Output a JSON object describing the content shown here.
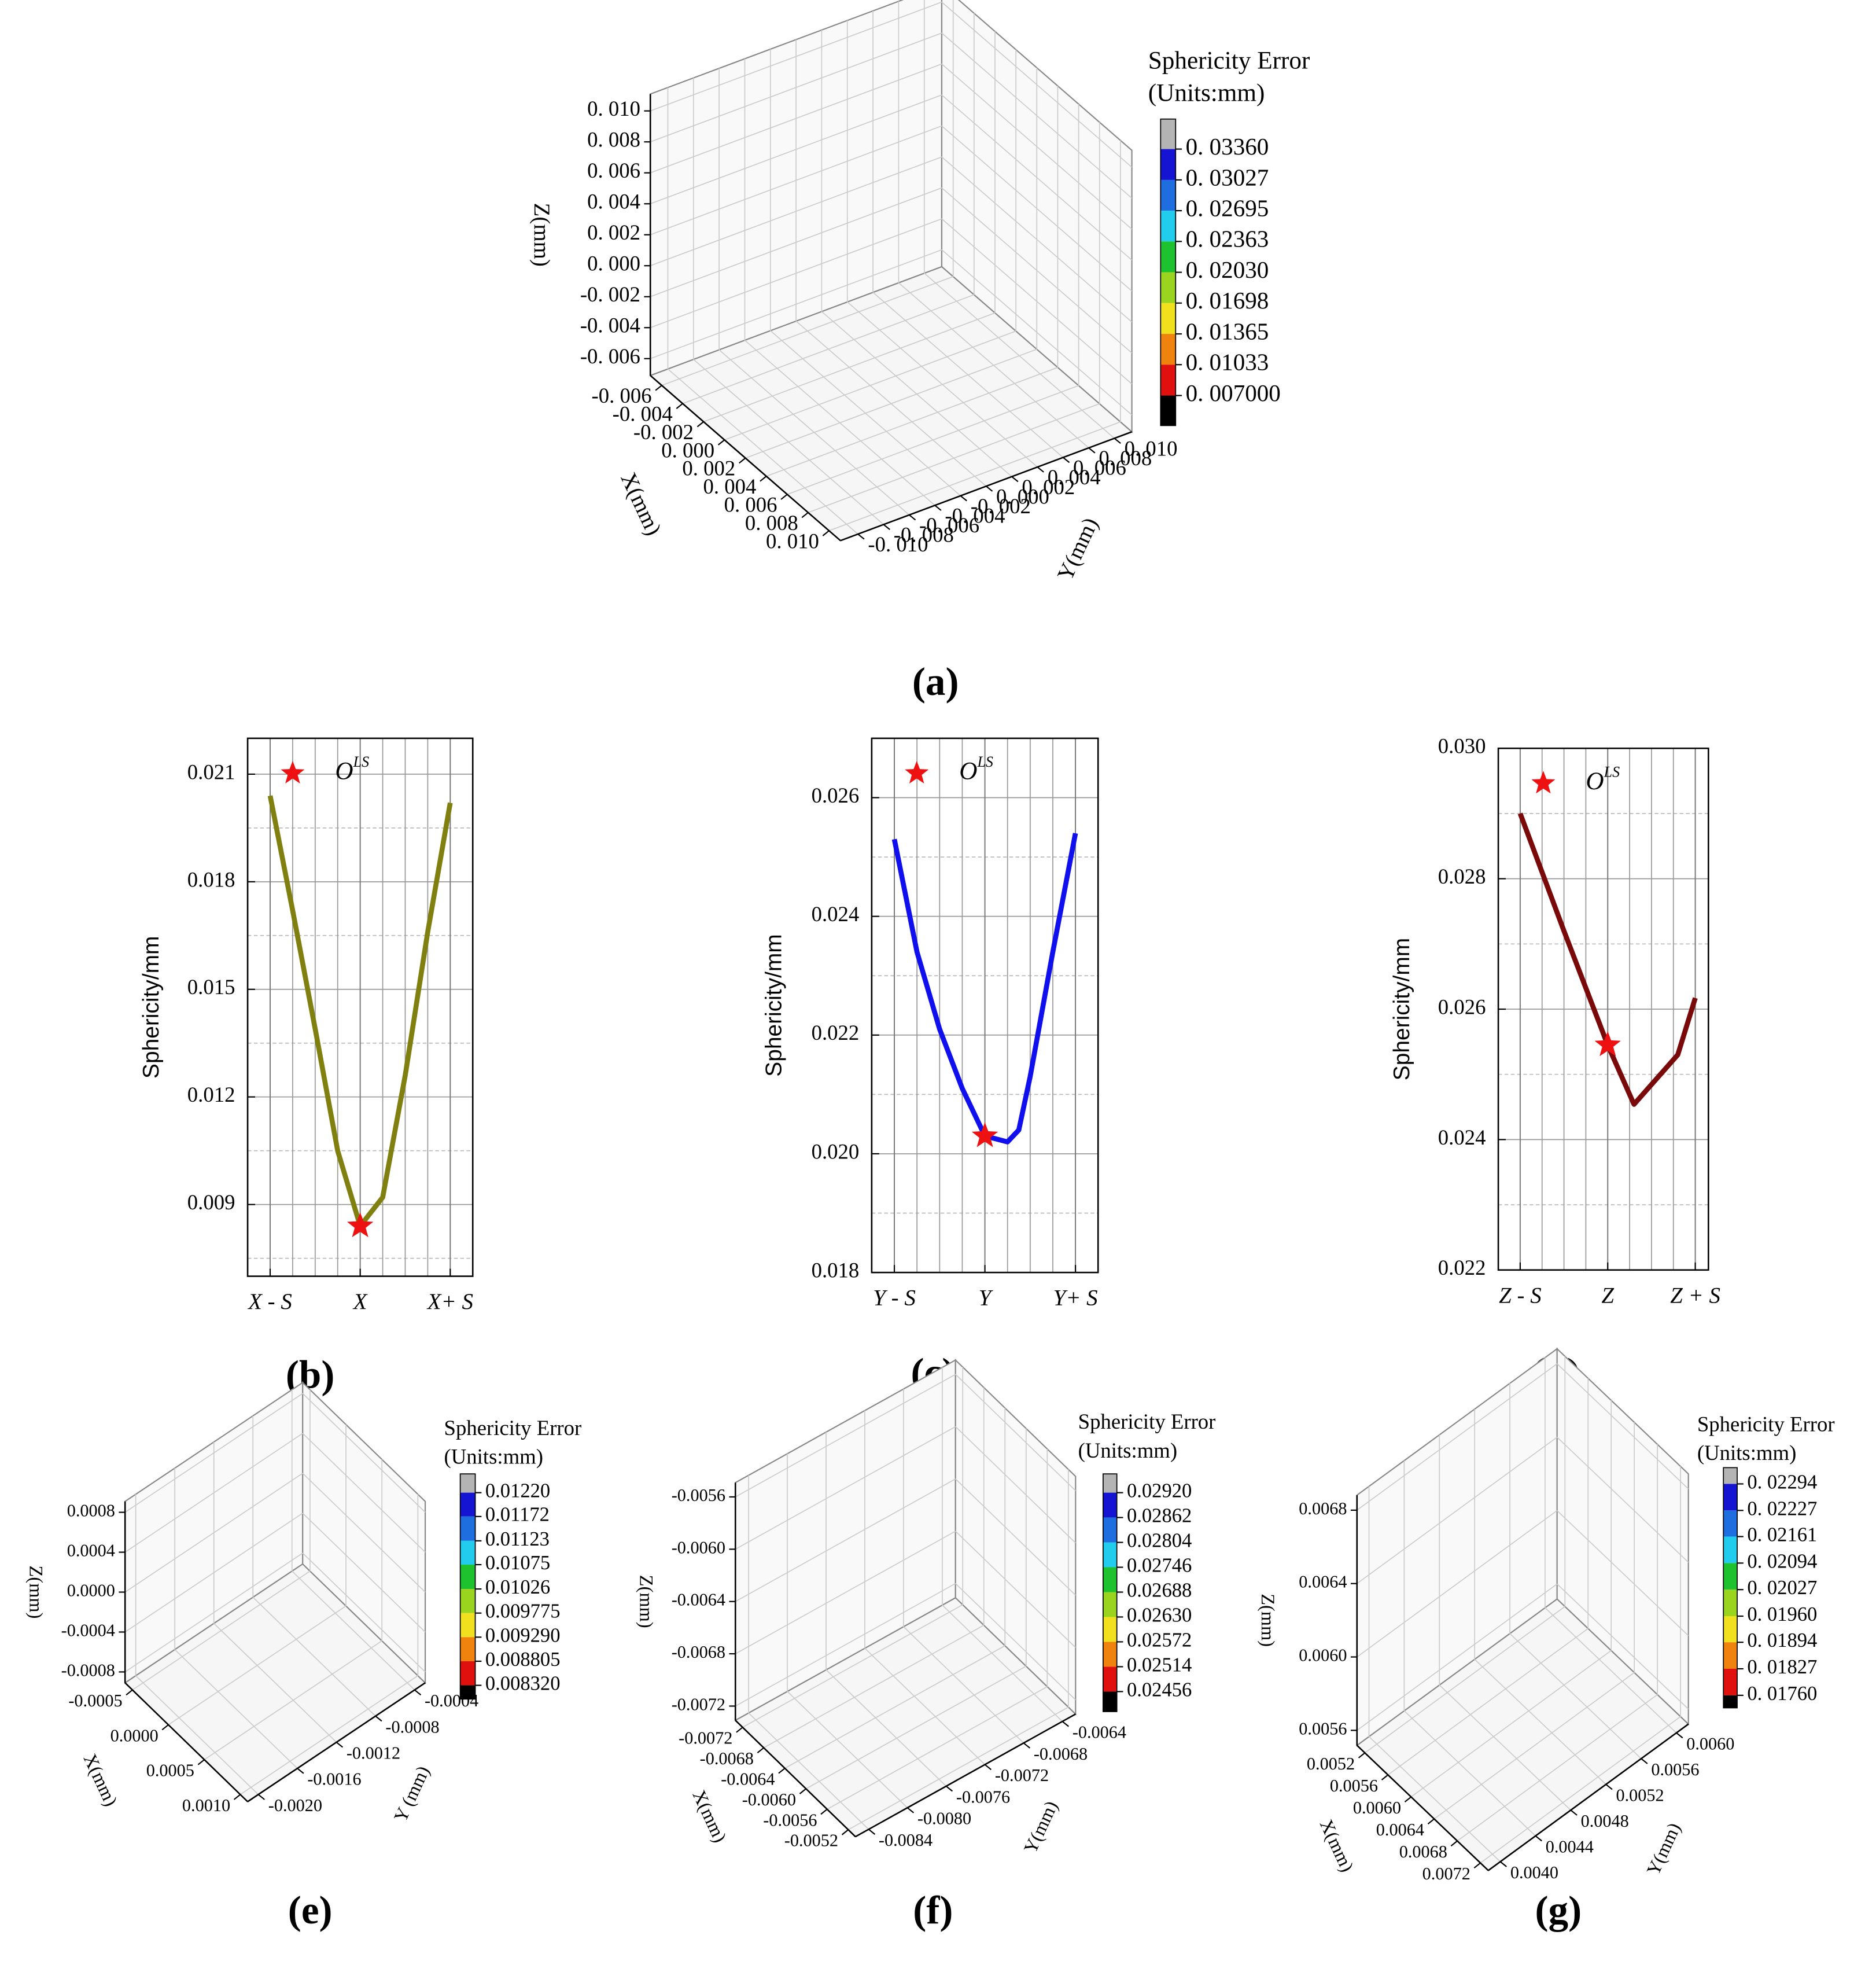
{
  "chart_data": [
    {
      "type": "scatter3d",
      "panel_label": "(a)",
      "colorbar_title": "Sphericity Error",
      "colorbar_units": "(Units:mm)",
      "zlabel": "Z(mm)",
      "xlabel": "X(mm)",
      "ylabel": "Y(mm)",
      "zticks": [
        {
          "value": 0.01,
          "label": "0. 010"
        },
        {
          "value": 0.008,
          "label": "0. 008"
        },
        {
          "value": 0.006,
          "label": "0. 006"
        },
        {
          "value": 0.004,
          "label": "0. 004"
        },
        {
          "value": 0.002,
          "label": "0. 002"
        },
        {
          "value": 0,
          "label": "0. 000"
        },
        {
          "value": -0.002,
          "label": "-0. 002"
        },
        {
          "value": -0.004,
          "label": "-0. 004"
        },
        {
          "value": -0.006,
          "label": "-0. 006"
        }
      ],
      "xticks": [
        {
          "value": -0.006,
          "label": "-0. 006"
        },
        {
          "value": -0.004,
          "label": "-0. 004"
        },
        {
          "value": -0.002,
          "label": "-0. 002"
        },
        {
          "value": 0,
          "label": "0. 000"
        },
        {
          "value": 0.002,
          "label": "0. 002"
        },
        {
          "value": 0.004,
          "label": "0. 004"
        },
        {
          "value": 0.006,
          "label": "0. 006"
        },
        {
          "value": 0.008,
          "label": "0. 008"
        },
        {
          "value": 0.01,
          "label": "0. 010"
        }
      ],
      "yticks": [
        {
          "value": -0.01,
          "label": "-0. 010"
        },
        {
          "value": -0.008,
          "label": "-0. 008"
        },
        {
          "value": -0.006,
          "label": "-0. 006"
        },
        {
          "value": -0.004,
          "label": "-0. 004"
        },
        {
          "value": -0.002,
          "label": "-0. 002"
        },
        {
          "value": 0,
          "label": "0. 000"
        },
        {
          "value": 0.002,
          "label": "0. 002"
        },
        {
          "value": 0.004,
          "label": "0. 004"
        },
        {
          "value": 0.006,
          "label": "0. 006"
        },
        {
          "value": 0.008,
          "label": "0. 008"
        },
        {
          "value": 0.01,
          "label": "0. 010"
        }
      ],
      "colorbar_ticks": [
        {
          "value": 0.0336,
          "label": "0. 03360"
        },
        {
          "value": 0.03027,
          "label": "0. 03027"
        },
        {
          "value": 0.02695,
          "label": "0. 02695"
        },
        {
          "value": 0.02363,
          "label": "0. 02363"
        },
        {
          "value": 0.0203,
          "label": "0. 02030"
        },
        {
          "value": 0.01698,
          "label": "0. 01698"
        },
        {
          "value": 0.01365,
          "label": "0. 01365"
        },
        {
          "value": 0.01033,
          "label": "0. 01033"
        },
        {
          "value": 0.007,
          "label": "0. 007000"
        }
      ],
      "colorbar_colors": [
        "#b4b4b4",
        "#1414d2",
        "#1e6ee0",
        "#22ccec",
        "#1ec22e",
        "#9ad41e",
        "#f0e01e",
        "#f0820e",
        "#e0100e",
        "#000000"
      ]
    },
    {
      "type": "line",
      "panel_label": "(b)",
      "ylabel": "Sphericity/mm",
      "color": "#808010",
      "x": [
        -1,
        -0.75,
        -0.5,
        -0.25,
        0,
        0.25,
        0.5,
        0.75,
        1
      ],
      "values": [
        0.0204,
        0.0172,
        0.0139,
        0.0105,
        0.0084,
        0.0092,
        0.0126,
        0.0166,
        0.0202
      ],
      "xlim": [
        -1.25,
        1.25
      ],
      "ylim": [
        0.007,
        0.022
      ],
      "xticks": [
        {
          "value": -1,
          "label": "X - S"
        },
        {
          "value": 0,
          "label": "X"
        },
        {
          "value": 1,
          "label": "X+ S"
        }
      ],
      "x_minor_ticks": [
        -0.75,
        -0.5,
        -0.25,
        0.25,
        0.5,
        0.75
      ],
      "yticks": [
        0.009,
        0.012,
        0.015,
        0.018,
        0.021
      ],
      "y_minor_ticks": [
        0.0075,
        0.0105,
        0.0135,
        0.0165,
        0.0195
      ],
      "marker": {
        "x": 0,
        "y": 0.0084,
        "color": "#ee1111"
      },
      "legend": {
        "label": "O",
        "superscript": "LS"
      }
    },
    {
      "type": "line",
      "panel_label": "(c)",
      "ylabel": "Sphericity/mm",
      "color": "#1010ee",
      "x": [
        -1,
        -0.75,
        -0.5,
        -0.25,
        0,
        0.25,
        0.375,
        0.5,
        0.75,
        1
      ],
      "values": [
        0.0253,
        0.0234,
        0.0221,
        0.0211,
        0.0203,
        0.0202,
        0.0204,
        0.0213,
        0.0234,
        0.0254
      ],
      "xlim": [
        -1.25,
        1.25
      ],
      "ylim": [
        0.018,
        0.027
      ],
      "xticks": [
        {
          "value": -1,
          "label": "Y - S"
        },
        {
          "value": 0,
          "label": "Y"
        },
        {
          "value": 1,
          "label": "Y+ S"
        }
      ],
      "x_minor_ticks": [
        -0.75,
        -0.5,
        -0.25,
        0.25,
        0.5,
        0.75
      ],
      "yticks": [
        0.018,
        {
          "value": 0.02,
          "label": "0.020"
        },
        0.022,
        0.024,
        0.026
      ],
      "y_minor_ticks": [
        0.019,
        0.021,
        0.023,
        0.025
      ],
      "marker": {
        "x": 0,
        "y": 0.0203,
        "color": "#ee1111"
      },
      "legend": {
        "label": "O",
        "superscript": "LS"
      }
    },
    {
      "type": "line",
      "panel_label": "(d)",
      "ylabel": "Sphericity/mm",
      "color": "#7a0a0a",
      "x": [
        -1,
        -0.5,
        0,
        0.3,
        0.8,
        1
      ],
      "values": [
        0.029,
        0.0272,
        0.02545,
        0.02454,
        0.0253,
        0.02617
      ],
      "xlim": [
        -1.25,
        1.15
      ],
      "ylim": [
        0.022,
        0.03
      ],
      "xticks": [
        {
          "value": -1,
          "label": "Z - S"
        },
        {
          "value": 0,
          "label": "Z"
        },
        {
          "value": 1,
          "label": "Z + S"
        }
      ],
      "x_minor_ticks": [
        -0.75,
        -0.5,
        -0.25,
        0.25,
        0.5,
        0.75
      ],
      "yticks": [
        0.022,
        0.024,
        0.026,
        0.028,
        {
          "value": 0.03,
          "label": "0.030"
        }
      ],
      "y_minor_ticks": [
        0.023,
        0.025,
        0.027,
        0.029
      ],
      "marker": {
        "x": 0,
        "y": 0.02545,
        "color": "#ee1111"
      },
      "legend": {
        "label": "O",
        "superscript": "LS"
      }
    },
    {
      "type": "scatter3d",
      "panel_label": "(e)",
      "colorbar_title": "Sphericity Error",
      "colorbar_units": "(Units:mm)",
      "zlabel": "Z(mm)",
      "xlabel": "X(mm)",
      "ylabel": "Y (mm)",
      "zticks": [
        0.0008,
        0.0004,
        {
          "value": 0,
          "label": "0.0000"
        },
        -0.0004,
        -0.0008
      ],
      "xticks": [
        -0.0005,
        {
          "value": 0,
          "label": "0.0000"
        },
        0.0005,
        {
          "value": 0.001,
          "label": "0.0010"
        }
      ],
      "yticks": [
        -0.0004,
        -0.0008,
        -0.0012,
        -0.0016,
        {
          "value": -0.002,
          "label": "-0.0020"
        }
      ],
      "colorbar_ticks": [
        {
          "value": 0.0122,
          "label": "0.01220"
        },
        0.01172,
        0.01123,
        0.01075,
        0.01026,
        0.009775,
        {
          "value": 0.00929,
          "label": "0.009290"
        },
        0.008805,
        {
          "value": 0.00832,
          "label": "0.008320"
        }
      ],
      "colorbar_colors": [
        "#b4b4b4",
        "#1414d2",
        "#1e6ee0",
        "#22ccec",
        "#1ec22e",
        "#9ad41e",
        "#f0e01e",
        "#f0820e",
        "#e0100e",
        "#000000"
      ]
    },
    {
      "type": "scatter3d",
      "panel_label": "(f)",
      "colorbar_title": "Sphericity Error",
      "colorbar_units": "(Units:mm)",
      "zlabel": "Z(mm)",
      "xlabel": "X(mm)",
      "ylabel": "Y(mm)",
      "zticks": [
        -0.0056,
        {
          "value": -0.006,
          "label": "-0.0060"
        },
        -0.0064,
        -0.0068,
        -0.0072
      ],
      "xticks": [
        -0.0072,
        -0.0068,
        -0.0064,
        {
          "value": -0.006,
          "label": "-0.0060"
        },
        -0.0056,
        -0.0052
      ],
      "yticks": [
        -0.0064,
        -0.0068,
        -0.0072,
        -0.0076,
        {
          "value": -0.008,
          "label": "-0.0080"
        },
        -0.0084
      ],
      "colorbar_ticks": [
        {
          "value": 0.0292,
          "label": "0.02920"
        },
        0.02862,
        0.02804,
        0.02746,
        0.02688,
        {
          "value": 0.0263,
          "label": "0.02630"
        },
        0.02572,
        0.02514,
        0.02456
      ],
      "colorbar_colors": [
        "#b4b4b4",
        "#1414d2",
        "#1e6ee0",
        "#22ccec",
        "#1ec22e",
        "#9ad41e",
        "#f0e01e",
        "#f0820e",
        "#e0100e",
        "#000000"
      ]
    },
    {
      "type": "scatter3d",
      "panel_label": "(g)",
      "colorbar_title": "Sphericity Error",
      "colorbar_units": "(Units:mm)",
      "zlabel": "Z(mm)",
      "xlabel": "X(mm)",
      "ylabel": "Y(mm)",
      "zticks": [
        0.0068,
        0.0064,
        {
          "value": 0.006,
          "label": "0.0060"
        },
        0.0056
      ],
      "xticks": [
        0.0052,
        0.0056,
        {
          "value": 0.006,
          "label": "0.0060"
        },
        0.0064,
        0.0068,
        0.0072
      ],
      "yticks": [
        {
          "value": 0.006,
          "label": "0.0060"
        },
        0.0056,
        0.0052,
        0.0048,
        0.0044,
        {
          "value": 0.004,
          "label": "0.0040"
        }
      ],
      "colorbar_ticks": [
        {
          "value": 0.02294,
          "label": "0. 02294"
        },
        {
          "value": 0.02227,
          "label": "0. 02227"
        },
        {
          "value": 0.02161,
          "label": "0. 02161"
        },
        {
          "value": 0.02094,
          "label": "0. 02094"
        },
        {
          "value": 0.02027,
          "label": "0. 02027"
        },
        {
          "value": 0.0196,
          "label": "0. 01960"
        },
        {
          "value": 0.01894,
          "label": "0. 01894"
        },
        {
          "value": 0.01827,
          "label": "0. 01827"
        },
        {
          "value": 0.0176,
          "label": "0. 01760"
        }
      ],
      "colorbar_colors": [
        "#b4b4b4",
        "#1414d2",
        "#1e6ee0",
        "#22ccec",
        "#1ec22e",
        "#9ad41e",
        "#f0e01e",
        "#f0820e",
        "#e0100e",
        "#000000"
      ]
    }
  ]
}
